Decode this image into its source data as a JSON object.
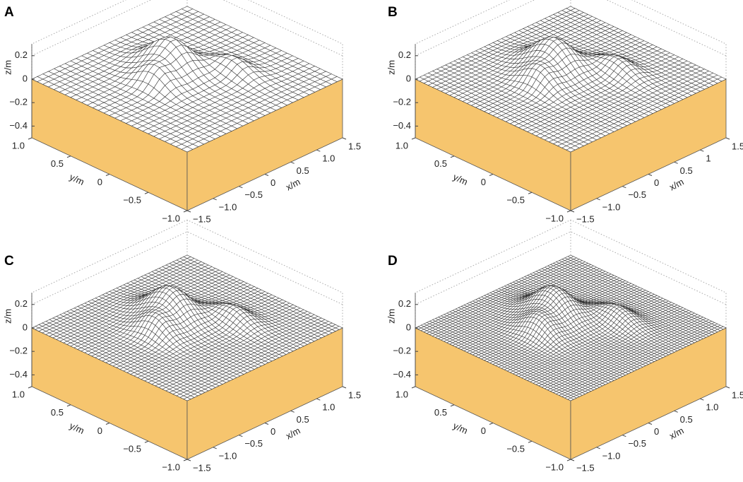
{
  "chart_data": [
    {
      "type": "surface",
      "title": "A",
      "xlabel": "x/m",
      "ylabel": "y/m",
      "zlabel": "z/m",
      "color": "#f6c56e",
      "xlim": [
        -1.5,
        1.5
      ],
      "ylim": [
        -1,
        1
      ],
      "zlim": [
        -0.5,
        0.3
      ],
      "xticks": [
        {
          "value": -1.5,
          "label": "−1.5"
        },
        {
          "value": -1,
          "label": "−1.0"
        },
        {
          "value": -0.5,
          "label": "−0.5"
        },
        0,
        0.5,
        {
          "value": 1,
          "label": "1.0"
        },
        1.5
      ],
      "yticks": [
        {
          "value": 1,
          "label": "1.0"
        },
        0.5,
        0,
        {
          "value": -0.5,
          "label": "−0.5"
        },
        {
          "value": -1,
          "label": "−1.0"
        }
      ],
      "zticks": [
        0.2,
        0,
        {
          "value": -0.2,
          "label": "−0.2"
        },
        {
          "value": -0.4,
          "label": "−0.4"
        }
      ]
    },
    {
      "type": "surface",
      "title": "B",
      "xlabel": "x/m",
      "ylabel": "y/m",
      "zlabel": "z/m",
      "color": "#f6c56e",
      "xlim": [
        -1.5,
        1.5
      ],
      "ylim": [
        -1,
        1
      ],
      "zlim": [
        -0.5,
        0.3
      ],
      "xticks": [
        {
          "value": -1.5,
          "label": "−1.5"
        },
        {
          "value": -1,
          "label": "−1.0"
        },
        {
          "value": -0.5,
          "label": "−0.5"
        },
        0,
        0.5,
        1,
        1.5
      ],
      "yticks": [
        {
          "value": 1,
          "label": "1.0"
        },
        0.5,
        0,
        {
          "value": -0.5,
          "label": "−0.5"
        },
        {
          "value": -1,
          "label": "−1.0"
        }
      ],
      "zticks": [
        0.2,
        0,
        {
          "value": -0.2,
          "label": "−0.2"
        },
        {
          "value": -0.4,
          "label": "−0.4"
        }
      ]
    },
    {
      "type": "surface",
      "title": "C",
      "xlabel": "x/m",
      "ylabel": "y/m",
      "zlabel": "z/m",
      "color": "#f6c56e",
      "xlim": [
        -1.5,
        1.5
      ],
      "ylim": [
        -1,
        1
      ],
      "zlim": [
        -0.5,
        0.3
      ],
      "xticks": [
        {
          "value": -1.5,
          "label": "−1.5"
        },
        {
          "value": -1,
          "label": "−1.0"
        },
        {
          "value": -0.5,
          "label": "−0.5"
        },
        0,
        0.5,
        {
          "value": 1,
          "label": "1.0"
        },
        1.5
      ],
      "yticks": [
        {
          "value": 1,
          "label": "1.0"
        },
        0.5,
        0,
        {
          "value": -0.5,
          "label": "−0.5"
        },
        {
          "value": -1,
          "label": "−1.0"
        }
      ],
      "zticks": [
        0.2,
        0,
        {
          "value": -0.2,
          "label": "−0.2"
        },
        {
          "value": -0.4,
          "label": "−0.4"
        }
      ]
    },
    {
      "type": "surface",
      "title": "D",
      "xlabel": "x/m",
      "ylabel": "y/m",
      "zlabel": "z/m",
      "color": "#f6c56e",
      "xlim": [
        -1.5,
        1.5
      ],
      "ylim": [
        -1,
        1
      ],
      "zlim": [
        -0.5,
        0.3
      ],
      "xticks": [
        {
          "value": -1.5,
          "label": "−1.5"
        },
        {
          "value": -1,
          "label": "−1.0"
        },
        {
          "value": -0.5,
          "label": "−0.5"
        },
        0,
        0.5,
        {
          "value": 1,
          "label": "1.0"
        },
        1.5
      ],
      "yticks": [
        {
          "value": 1,
          "label": "1.0"
        },
        0.5,
        0,
        {
          "value": -0.5,
          "label": "−0.5"
        },
        {
          "value": -1,
          "label": "−1.0"
        }
      ],
      "zticks": [
        0.2,
        0,
        {
          "value": -0.2,
          "label": "−0.2"
        },
        {
          "value": -0.4,
          "label": "−0.4"
        }
      ]
    }
  ]
}
